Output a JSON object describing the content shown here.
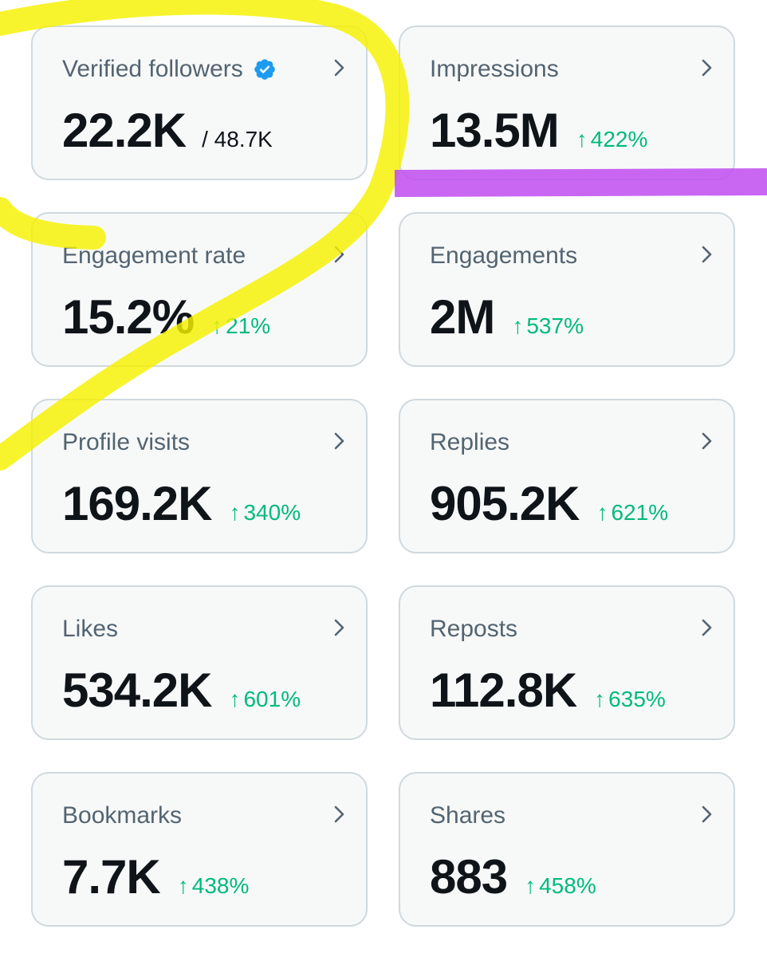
{
  "colors": {
    "card_background": "#f7f9f9",
    "card_border": "#cfd9de",
    "label_text": "#536471",
    "value_text": "#0f1419",
    "positive_change": "#00ba7c",
    "verified_badge": "#1d9bf0",
    "yellow_highlight": "#f5f100",
    "purple_highlight": "#c04cf0"
  },
  "cards": {
    "verified_followers": {
      "label": "Verified followers",
      "value": "22.2K",
      "total": "/ 48.7K"
    },
    "impressions": {
      "label": "Impressions",
      "value": "13.5M",
      "change": "422%"
    },
    "engagement_rate": {
      "label": "Engagement rate",
      "value": "15.2%",
      "change": "21%"
    },
    "engagements": {
      "label": "Engagements",
      "value": "2M",
      "change": "537%"
    },
    "profile_visits": {
      "label": "Profile visits",
      "value": "169.2K",
      "change": "340%"
    },
    "replies": {
      "label": "Replies",
      "value": "905.2K",
      "change": "621%"
    },
    "likes": {
      "label": "Likes",
      "value": "534.2K",
      "change": "601%"
    },
    "reposts": {
      "label": "Reposts",
      "value": "112.8K",
      "change": "635%"
    },
    "bookmarks": {
      "label": "Bookmarks",
      "value": "7.7K",
      "change": "438%"
    },
    "shares": {
      "label": "Shares",
      "value": "883",
      "change": "458%"
    }
  },
  "icons": {
    "chevron": "chevron-right-icon",
    "up_arrow": "↑",
    "verified": "verified-badge-icon"
  }
}
